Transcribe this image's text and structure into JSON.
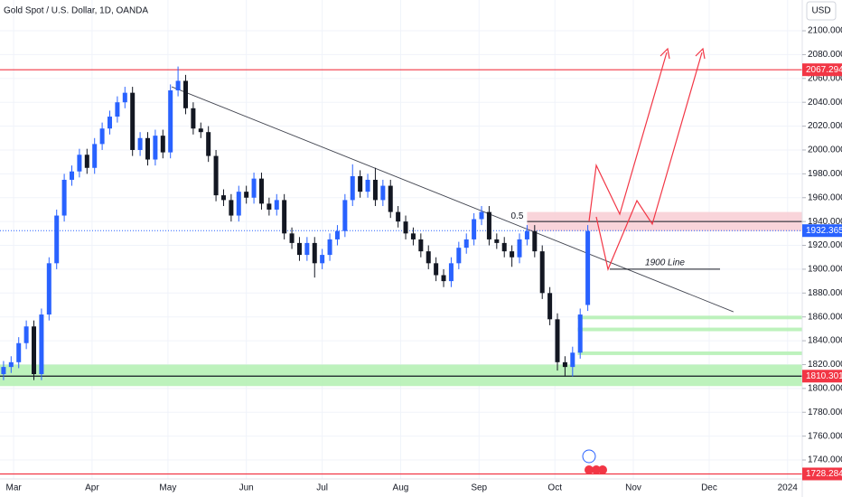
{
  "chart_data": {
    "type": "candlestick",
    "title": "Gold Spot / U.S. Dollar, 1D, OANDA",
    "currency": "USD",
    "xlim": [
      -5.4,
      311.8
    ],
    "ylim": [
      1724.1,
      2125.8
    ],
    "xticks": [
      {
        "value": 0,
        "label": "Mar"
      },
      {
        "value": 31,
        "label": "Apr"
      },
      {
        "value": 61,
        "label": "May"
      },
      {
        "value": 92,
        "label": "Jun"
      },
      {
        "value": 122,
        "label": "Jul"
      },
      {
        "value": 153,
        "label": "Aug"
      },
      {
        "value": 184,
        "label": "Sep"
      },
      {
        "value": 214,
        "label": "Oct"
      },
      {
        "value": 245,
        "label": "Nov"
      },
      {
        "value": 275,
        "label": "Dec"
      },
      {
        "value": 306,
        "label": "2024"
      }
    ],
    "yticks": [
      {
        "value": 1740,
        "label": "1740.000"
      },
      {
        "value": 1760,
        "label": "1760.000"
      },
      {
        "value": 1780,
        "label": "1780.000"
      },
      {
        "value": 1800,
        "label": "1800.000"
      },
      {
        "value": 1820,
        "label": "1820.000"
      },
      {
        "value": 1840,
        "label": "1840.000"
      },
      {
        "value": 1860,
        "label": "1860.000"
      },
      {
        "value": 1880,
        "label": "1880.000"
      },
      {
        "value": 1900,
        "label": "1900.000"
      },
      {
        "value": 1920,
        "label": "1920.000"
      },
      {
        "value": 1940,
        "label": "1940.000"
      },
      {
        "value": 1960,
        "label": "1960.000"
      },
      {
        "value": 1980,
        "label": "1980.000"
      },
      {
        "value": 2000,
        "label": "2000.000"
      },
      {
        "value": 2020,
        "label": "2020.000"
      },
      {
        "value": 2040,
        "label": "2040.000"
      },
      {
        "value": 2060,
        "label": "2060.000"
      },
      {
        "value": 2080,
        "label": "2080.000"
      },
      {
        "value": 2100,
        "label": "2100.000"
      }
    ],
    "up_color": "#2962ff",
    "down_color": "#131722",
    "x": [
      -4,
      -1,
      2,
      5,
      8,
      11,
      14,
      17,
      20,
      23,
      26,
      29,
      32,
      35,
      38,
      41,
      44,
      47,
      50,
      53,
      56,
      59,
      62,
      65,
      68,
      71,
      74,
      77,
      80,
      83,
      86,
      89,
      92,
      95,
      98,
      101,
      104,
      107,
      110,
      113,
      116,
      119,
      122,
      125,
      128,
      131,
      134,
      137,
      140,
      143,
      146,
      149,
      152,
      155,
      158,
      161,
      164,
      167,
      170,
      173,
      176,
      179,
      182,
      185,
      188,
      191,
      194,
      197,
      200,
      203,
      206,
      209,
      212,
      215,
      218,
      221,
      224,
      227
    ],
    "ohlc": [
      [
        1812,
        1823,
        1807,
        1818
      ],
      [
        1818,
        1827,
        1813,
        1822
      ],
      [
        1822,
        1843,
        1817,
        1838
      ],
      [
        1838,
        1857,
        1833,
        1852
      ],
      [
        1852,
        1857,
        1807,
        1812
      ],
      [
        1812,
        1867,
        1807,
        1862
      ],
      [
        1862,
        1910,
        1857,
        1905
      ],
      [
        1905,
        1950,
        1900,
        1945
      ],
      [
        1945,
        1980,
        1940,
        1975
      ],
      [
        1975,
        1987,
        1970,
        1982
      ],
      [
        1982,
        2001,
        1977,
        1996
      ],
      [
        1996,
        2001,
        1980,
        1985
      ],
      [
        1985,
        2010,
        1980,
        2005
      ],
      [
        2005,
        2023,
        2000,
        2018
      ],
      [
        2018,
        2033,
        2013,
        2028
      ],
      [
        2028,
        2045,
        2023,
        2040
      ],
      [
        2040,
        2053,
        2035,
        2048
      ],
      [
        2048,
        2053,
        1995,
        2000
      ],
      [
        2000,
        2015,
        1995,
        2010
      ],
      [
        2010,
        2015,
        1987,
        1992
      ],
      [
        1992,
        2017,
        1987,
        2012
      ],
      [
        2012,
        2017,
        1993,
        1998
      ],
      [
        1998,
        2055,
        1993,
        2050
      ],
      [
        2050,
        2070,
        2045,
        2058
      ],
      [
        2058,
        2063,
        2030,
        2035
      ],
      [
        2035,
        2040,
        2013,
        2018
      ],
      [
        2018,
        2023,
        2010,
        2015
      ],
      [
        2015,
        2020,
        1990,
        1995
      ],
      [
        1995,
        2000,
        1957,
        1962
      ],
      [
        1962,
        1967,
        1953,
        1958
      ],
      [
        1958,
        1963,
        1940,
        1945
      ],
      [
        1945,
        1970,
        1940,
        1965
      ],
      [
        1965,
        1970,
        1955,
        1960
      ],
      [
        1960,
        1981,
        1955,
        1976
      ],
      [
        1976,
        1981,
        1950,
        1955
      ],
      [
        1955,
        1960,
        1945,
        1950
      ],
      [
        1950,
        1963,
        1945,
        1958
      ],
      [
        1958,
        1963,
        1925,
        1930
      ],
      [
        1930,
        1935,
        1917,
        1922
      ],
      [
        1922,
        1927,
        1907,
        1912
      ],
      [
        1912,
        1927,
        1907,
        1922
      ],
      [
        1922,
        1927,
        1893,
        1905
      ],
      [
        1905,
        1917,
        1900,
        1912
      ],
      [
        1912,
        1930,
        1907,
        1925
      ],
      [
        1925,
        1937,
        1920,
        1932
      ],
      [
        1932,
        1963,
        1927,
        1958
      ],
      [
        1958,
        1988,
        1953,
        1978
      ],
      [
        1978,
        1983,
        1960,
        1965
      ],
      [
        1965,
        1980,
        1960,
        1975
      ],
      [
        1975,
        1985,
        1953,
        1958
      ],
      [
        1958,
        1975,
        1953,
        1970
      ],
      [
        1970,
        1975,
        1943,
        1948
      ],
      [
        1948,
        1953,
        1935,
        1940
      ],
      [
        1940,
        1945,
        1925,
        1930
      ],
      [
        1930,
        1935,
        1920,
        1925
      ],
      [
        1925,
        1930,
        1910,
        1915
      ],
      [
        1915,
        1920,
        1900,
        1905
      ],
      [
        1905,
        1910,
        1890,
        1895
      ],
      [
        1895,
        1900,
        1885,
        1890
      ],
      [
        1890,
        1910,
        1885,
        1905
      ],
      [
        1905,
        1923,
        1900,
        1918
      ],
      [
        1918,
        1930,
        1913,
        1925
      ],
      [
        1925,
        1947,
        1920,
        1942
      ],
      [
        1942,
        1953,
        1937,
        1948
      ],
      [
        1948,
        1953,
        1920,
        1925
      ],
      [
        1925,
        1930,
        1917,
        1922
      ],
      [
        1922,
        1927,
        1910,
        1915
      ],
      [
        1915,
        1920,
        1902,
        1910
      ],
      [
        1910,
        1930,
        1905,
        1925
      ],
      [
        1925,
        1937,
        1920,
        1932
      ],
      [
        1932,
        1937,
        1910,
        1915
      ],
      [
        1915,
        1920,
        1875,
        1880
      ],
      [
        1880,
        1885,
        1853,
        1858
      ],
      [
        1858,
        1863,
        1815,
        1822
      ],
      [
        1822,
        1827,
        1810,
        1818
      ],
      [
        1818,
        1835,
        1810,
        1830
      ],
      [
        1830,
        1867,
        1825,
        1862
      ],
      [
        1870,
        1937,
        1865,
        1932
      ]
    ],
    "levels": [
      {
        "value": 2067.294,
        "color": "#f23645"
      },
      {
        "value": 1810.301,
        "color": "#f23645"
      },
      {
        "value": 1728.284,
        "color": "#f23645"
      }
    ],
    "last_price": {
      "value": 1932.365,
      "color": "#2962ff"
    },
    "zones": [
      {
        "low": 1802,
        "high": 1820,
        "start": -5.4,
        "color": "#b2f0b0"
      },
      {
        "low": 1858,
        "high": 1861,
        "start": 223,
        "color": "#b2f0b0"
      },
      {
        "low": 1848,
        "high": 1851,
        "start": 223,
        "color": "#b2f0b0"
      },
      {
        "low": 1828,
        "high": 1831,
        "start": 223,
        "color": "#b2f0b0"
      },
      {
        "low": 1932,
        "high": 1948,
        "start": 203,
        "color": "#f8cdd3"
      }
    ],
    "fib": {
      "value": 1940,
      "start": 203,
      "label": "0.5"
    },
    "trendline": {
      "x": [
        62.5,
        284.6
      ],
      "y": [
        2053,
        1864.3
      ]
    },
    "line_1900": {
      "value": 1900,
      "start": 235.7,
      "end": 279.3,
      "label": "1900 Line"
    }
  }
}
